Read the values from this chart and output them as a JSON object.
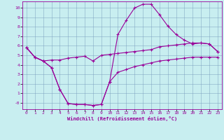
{
  "xlabel": "Windchill (Refroidissement éolien,°C)",
  "bg_color": "#c8eef0",
  "grid_color": "#7799bb",
  "line_color": "#990099",
  "xlim": [
    -0.5,
    23.5
  ],
  "ylim": [
    -0.7,
    10.7
  ],
  "xticks": [
    0,
    1,
    2,
    3,
    4,
    5,
    6,
    7,
    8,
    9,
    10,
    11,
    12,
    13,
    14,
    15,
    16,
    17,
    18,
    19,
    20,
    21,
    22,
    23
  ],
  "yticks": [
    0,
    1,
    2,
    3,
    4,
    5,
    6,
    7,
    8,
    9,
    10
  ],
  "ytick_labels": [
    "-0",
    "1",
    "2",
    "3",
    "4",
    "5",
    "6",
    "7",
    "8",
    "9",
    "10"
  ],
  "curve1_x": [
    0,
    1,
    2,
    3,
    4,
    5,
    6,
    7,
    8,
    9,
    10,
    11,
    12,
    13,
    14,
    15,
    16,
    17,
    18,
    19,
    20,
    21,
    22,
    23
  ],
  "curve1_y": [
    5.8,
    4.8,
    4.4,
    4.5,
    4.5,
    4.7,
    4.8,
    4.9,
    4.4,
    5.0,
    5.1,
    5.2,
    5.3,
    5.4,
    5.5,
    5.6,
    5.9,
    6.0,
    6.1,
    6.2,
    6.3,
    6.3,
    6.2,
    5.4
  ],
  "curve2_x": [
    0,
    1,
    2,
    3,
    4,
    5,
    6,
    7,
    8,
    9,
    10,
    11,
    12,
    13,
    14,
    15,
    16,
    17,
    18,
    19,
    20,
    21,
    22,
    23
  ],
  "curve2_y": [
    5.8,
    4.8,
    4.4,
    3.7,
    1.4,
    -0.1,
    -0.2,
    -0.2,
    -0.3,
    -0.2,
    2.2,
    7.2,
    8.7,
    10.0,
    10.4,
    10.4,
    9.3,
    8.1,
    7.2,
    6.6,
    6.2,
    6.3,
    6.2,
    5.4
  ],
  "curve3_x": [
    0,
    1,
    2,
    3,
    4,
    5,
    6,
    7,
    8,
    9,
    10,
    11,
    12,
    13,
    14,
    15,
    16,
    17,
    18,
    19,
    20,
    21,
    22,
    23
  ],
  "curve3_y": [
    5.8,
    4.8,
    4.4,
    3.7,
    1.4,
    -0.1,
    -0.2,
    -0.2,
    -0.3,
    -0.2,
    2.2,
    3.2,
    3.5,
    3.8,
    4.0,
    4.2,
    4.4,
    4.5,
    4.6,
    4.7,
    4.8,
    4.8,
    4.8,
    4.8
  ],
  "marker": "+",
  "markersize": 3,
  "linewidth": 0.8
}
